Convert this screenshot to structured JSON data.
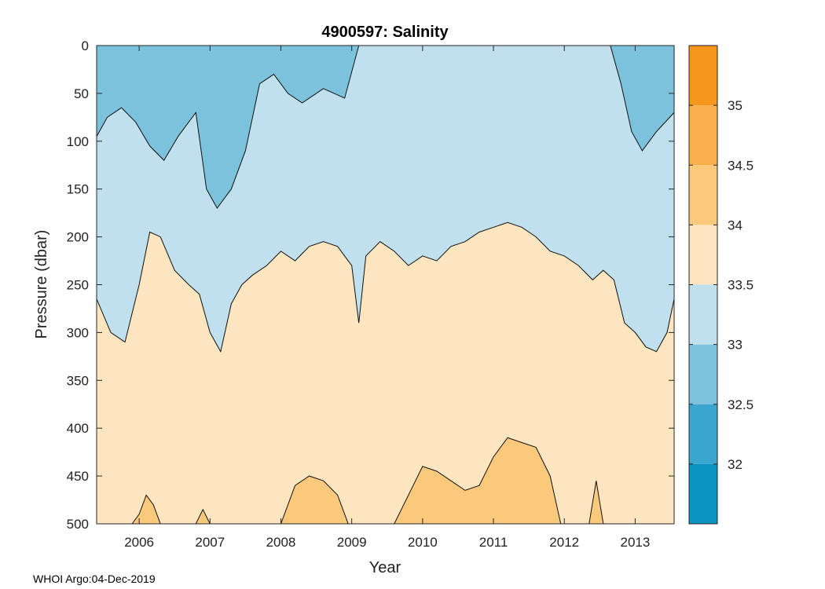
{
  "chart_data": {
    "type": "heatmap",
    "title": "4900597:  Salinity",
    "xlabel": "Year",
    "ylabel": "Pressure (dbar)",
    "footer": "WHOI Argo:04-Dec-2019",
    "x_range": [
      2005.4,
      2013.55
    ],
    "y_range": [
      0,
      500
    ],
    "y_reversed": true,
    "x_ticks": [
      2006,
      2007,
      2008,
      2009,
      2010,
      2011,
      2012,
      2013
    ],
    "x_tick_labels": [
      "2006",
      "2007",
      "2008",
      "2009",
      "2010",
      "2011",
      "2012",
      "2013"
    ],
    "y_ticks": [
      0,
      50,
      100,
      150,
      200,
      250,
      300,
      350,
      400,
      450,
      500
    ],
    "y_tick_labels": [
      "0",
      "50",
      "100",
      "150",
      "200",
      "250",
      "300",
      "350",
      "400",
      "450",
      "500"
    ],
    "colorbar": {
      "range": [
        31.5,
        35.5
      ],
      "levels": [
        31.5,
        32,
        32.5,
        33,
        33.5,
        34,
        34.5,
        35,
        35.5
      ],
      "level_colors": [
        "#0a92c1",
        "#3aa6cf",
        "#7cc2dc",
        "#bfe0ec",
        "#fce5bf",
        "#fbc97b",
        "#fab04a",
        "#f7961c"
      ],
      "tick_values": [
        32,
        32.5,
        33,
        33.5,
        34,
        34.5,
        35
      ],
      "tick_labels": [
        "32",
        "32.5",
        "33",
        "33.5",
        "34",
        "34.5",
        "35"
      ]
    },
    "contours": [
      {
        "level": 33.0,
        "color": "#7cc2dc",
        "x": [
          2005.4,
          2005.55,
          2005.75,
          2005.95,
          2006.15,
          2006.35,
          2006.55,
          2006.8,
          2006.95,
          2007.1,
          2007.3,
          2007.5,
          2007.7,
          2007.9,
          2008.1,
          2008.3,
          2008.6,
          2008.9,
          2009.1,
          2009.3,
          2009.6,
          2009.9,
          2010.2,
          2010.5,
          2010.8,
          2011.1,
          2011.4,
          2011.7,
          2011.9,
          2012.1,
          2012.3,
          2012.5,
          2012.65,
          2012.8,
          2012.95,
          2013.1,
          2013.3,
          2013.55
        ],
        "depth": [
          95,
          75,
          65,
          80,
          105,
          120,
          95,
          70,
          150,
          170,
          150,
          110,
          40,
          30,
          50,
          60,
          45,
          55,
          0,
          0,
          0,
          0,
          0,
          0,
          0,
          0,
          0,
          0,
          0,
          0,
          0,
          0,
          0,
          40,
          90,
          110,
          90,
          70
        ]
      },
      {
        "level": 33.5,
        "color": "#bfe0ec",
        "x": [
          2005.4,
          2005.6,
          2005.8,
          2006.0,
          2006.15,
          2006.3,
          2006.5,
          2006.7,
          2006.85,
          2007.0,
          2007.15,
          2007.3,
          2007.45,
          2007.6,
          2007.8,
          2008.0,
          2008.2,
          2008.4,
          2008.6,
          2008.8,
          2009.0,
          2009.1,
          2009.2,
          2009.4,
          2009.6,
          2009.8,
          2010.0,
          2010.2,
          2010.4,
          2010.6,
          2010.8,
          2011.0,
          2011.2,
          2011.4,
          2011.6,
          2011.8,
          2012.0,
          2012.2,
          2012.4,
          2012.55,
          2012.7,
          2012.85,
          2013.0,
          2013.15,
          2013.3,
          2013.45,
          2013.55
        ],
        "depth": [
          265,
          300,
          310,
          250,
          195,
          200,
          235,
          250,
          260,
          300,
          320,
          270,
          250,
          240,
          230,
          215,
          225,
          210,
          205,
          210,
          230,
          290,
          220,
          205,
          215,
          230,
          220,
          225,
          210,
          205,
          195,
          190,
          185,
          190,
          200,
          215,
          220,
          230,
          245,
          235,
          245,
          290,
          300,
          315,
          320,
          300,
          265
        ]
      }
    ],
    "patches": [
      {
        "level": 34.0,
        "color": "#fbc97b",
        "x": [
          2005.9,
          2006.0,
          2006.1,
          2006.2,
          2006.3
        ],
        "depth": [
          500,
          490,
          470,
          480,
          500
        ]
      },
      {
        "level": 34.0,
        "color": "#fbc97b",
        "x": [
          2006.8,
          2006.9,
          2007.0
        ],
        "depth": [
          500,
          485,
          500
        ]
      },
      {
        "level": 34.0,
        "color": "#fbc97b",
        "x": [
          2008.0,
          2008.2,
          2008.4,
          2008.6,
          2008.8,
          2008.95
        ],
        "depth": [
          500,
          460,
          450,
          455,
          470,
          500
        ]
      },
      {
        "level": 34.0,
        "color": "#fbc97b",
        "x": [
          2009.6,
          2009.8,
          2010.0,
          2010.2,
          2010.4,
          2010.6,
          2010.8,
          2011.0,
          2011.2,
          2011.4,
          2011.6,
          2011.8,
          2011.95
        ],
        "depth": [
          500,
          470,
          440,
          445,
          455,
          465,
          460,
          430,
          410,
          415,
          420,
          450,
          500
        ]
      },
      {
        "level": 34.0,
        "color": "#fbc97b",
        "x": [
          2012.35,
          2012.45,
          2012.55
        ],
        "depth": [
          500,
          455,
          500
        ]
      }
    ]
  }
}
